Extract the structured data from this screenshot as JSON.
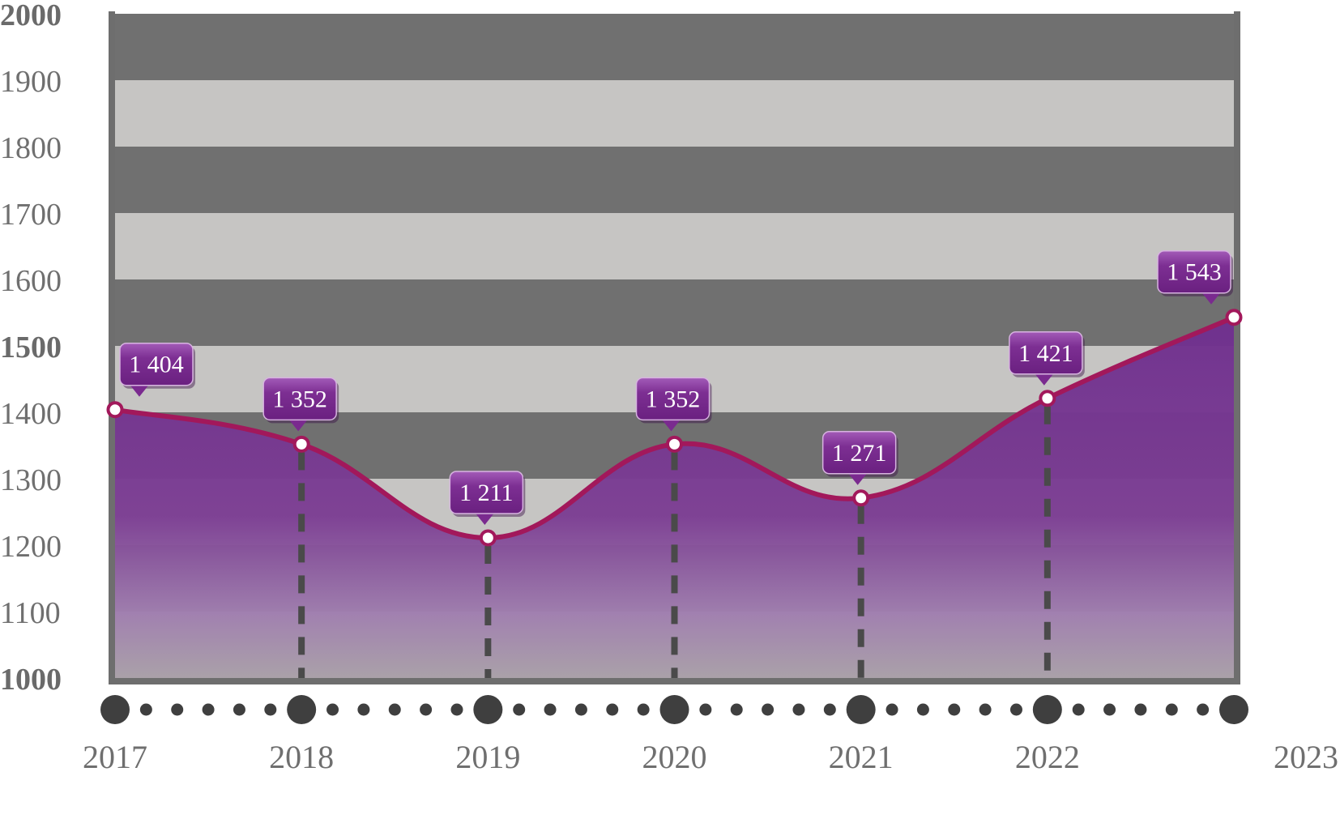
{
  "chart_data": {
    "type": "area",
    "x": [
      "2017",
      "2018",
      "2019",
      "2020",
      "2021",
      "2022",
      "2023"
    ],
    "series": [
      {
        "values": [
          1404,
          1352,
          1211,
          1352,
          1271,
          1421,
          1543
        ],
        "labels": [
          "1 404",
          "1 352",
          "1 211",
          "1 352",
          "1 271",
          "1 421",
          "1 543"
        ]
      }
    ],
    "title": "",
    "xlabel": "",
    "ylabel": "",
    "ylim": [
      1000,
      2000
    ],
    "yticks": [
      "1000",
      "1100",
      "1200",
      "1300",
      "1400",
      "1500",
      "1600",
      "1700",
      "1800",
      "1900",
      "2000"
    ],
    "grid": true,
    "legend": "none",
    "colors": {
      "band_light": "#c6c5c3",
      "band_dark": "#707070",
      "frame": "#6e6e6e",
      "line": "#a2185b",
      "area_top": "#6f2f8e",
      "area_bottom": "#a9a0a8",
      "callout": "#7a2a8f",
      "dots": "#3f3f3f",
      "dashes": "#4a4a4a",
      "tick_text": "#6f6f6f"
    }
  }
}
